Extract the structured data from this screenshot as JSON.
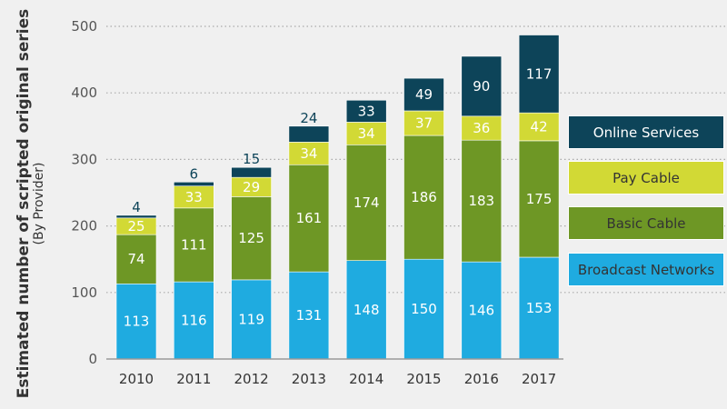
{
  "chart_data": {
    "type": "bar",
    "stacked": true,
    "title": "",
    "ylabel": "Estimated number of scripted original series",
    "ylabel_sub": "(By Provider)",
    "xlabel": "",
    "ylim": [
      0,
      500
    ],
    "yticks": [
      0,
      100,
      200,
      300,
      400,
      500
    ],
    "grid": true,
    "legend_position": "right",
    "categories": [
      "2010",
      "2011",
      "2012",
      "2013",
      "2014",
      "2015",
      "2016",
      "2017"
    ],
    "series": [
      {
        "name": "Broadcast Networks",
        "color": "#1fabe0",
        "text_color": "#333333",
        "values": [
          113,
          116,
          119,
          131,
          148,
          150,
          146,
          153
        ]
      },
      {
        "name": "Basic Cable",
        "color": "#6e9725",
        "text_color": "#333333",
        "values": [
          74,
          111,
          125,
          161,
          174,
          186,
          183,
          175
        ]
      },
      {
        "name": "Pay Cable",
        "color": "#d2d935",
        "text_color": "#333333",
        "values": [
          25,
          33,
          29,
          34,
          34,
          37,
          36,
          42
        ]
      },
      {
        "name": "Online Services",
        "color": "#0d4459",
        "text_color": "#ffffff",
        "values": [
          4,
          6,
          15,
          24,
          33,
          49,
          90,
          117
        ]
      }
    ]
  }
}
